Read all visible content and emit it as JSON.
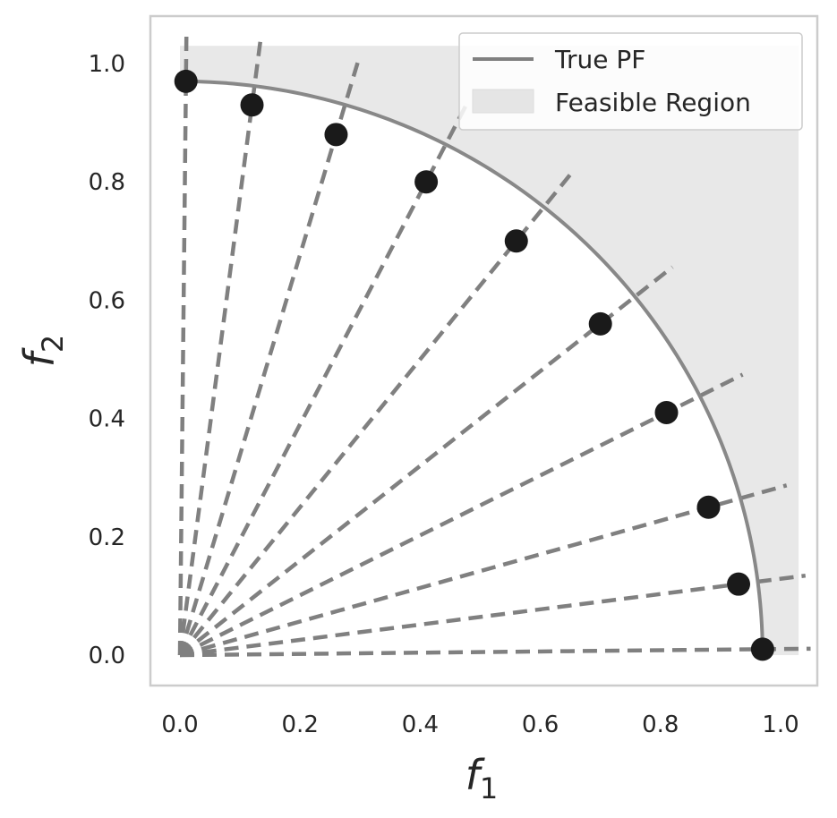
{
  "chart_data": {
    "type": "scatter",
    "title": "",
    "xlabel": "f",
    "xlabel_sub": "1",
    "ylabel": "f",
    "ylabel_sub": "2",
    "xlim": [
      -0.05,
      1.05
    ],
    "ylim": [
      -0.05,
      1.05
    ],
    "xticks": [
      "0.0",
      "0.2",
      "0.4",
      "0.6",
      "0.8",
      "1.0"
    ],
    "yticks": [
      "0.0",
      "0.2",
      "0.4",
      "0.6",
      "0.8",
      "1.0"
    ],
    "grid": false,
    "legend_position": "top-right",
    "legend": [
      {
        "label": "True PF",
        "kind": "line",
        "color": "#808080"
      },
      {
        "label": "Feasible Region",
        "kind": "patch",
        "color": "#e5e5e5"
      }
    ],
    "feasible_region": {
      "x": [
        0,
        1.03
      ],
      "y": [
        0,
        1.03
      ],
      "color": "#e8e8e8"
    },
    "true_pf": {
      "shape": "quarter-circle",
      "radius": 0.97,
      "color": "#888888"
    },
    "points": [
      {
        "x": 0.01,
        "y": 0.97
      },
      {
        "x": 0.12,
        "y": 0.93
      },
      {
        "x": 0.26,
        "y": 0.88
      },
      {
        "x": 0.41,
        "y": 0.8
      },
      {
        "x": 0.56,
        "y": 0.7
      },
      {
        "x": 0.7,
        "y": 0.56
      },
      {
        "x": 0.81,
        "y": 0.41
      },
      {
        "x": 0.88,
        "y": 0.25
      },
      {
        "x": 0.93,
        "y": 0.12
      },
      {
        "x": 0.97,
        "y": 0.01
      }
    ],
    "point_color": "#1a1a1a",
    "ray_color": "#808080",
    "ray_length": 1.05
  }
}
